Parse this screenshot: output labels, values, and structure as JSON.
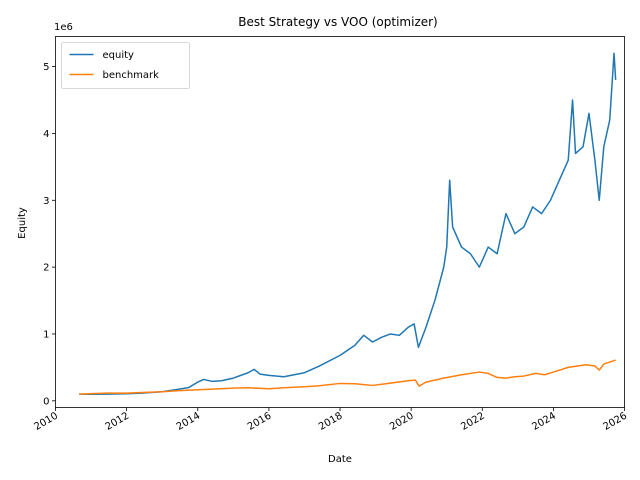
{
  "chart_data": {
    "type": "line",
    "title": "Best Strategy vs VOO (optimizer)",
    "xlabel": "Date",
    "ylabel": "Equity",
    "y_offset_label": "1e6",
    "x_range": [
      "2010-01-01",
      "2025-12-31"
    ],
    "ylim": [
      -100000,
      5450000
    ],
    "x_ticks": [
      "2010",
      "2012",
      "2014",
      "2016",
      "2018",
      "2020",
      "2022",
      "2024",
      "2026"
    ],
    "y_ticks": [
      0,
      1,
      2,
      3,
      4,
      5
    ],
    "grid": false,
    "legend_position": "upper left",
    "series": [
      {
        "name": "equity",
        "color": "#1f77b4",
        "points": [
          [
            "2010-09-01",
            100000
          ],
          [
            "2011-01-01",
            98000
          ],
          [
            "2011-06-01",
            100000
          ],
          [
            "2012-01-01",
            105000
          ],
          [
            "2012-06-01",
            115000
          ],
          [
            "2013-01-01",
            135000
          ],
          [
            "2013-06-01",
            170000
          ],
          [
            "2013-10-01",
            200000
          ],
          [
            "2014-01-01",
            280000
          ],
          [
            "2014-03-01",
            320000
          ],
          [
            "2014-06-01",
            290000
          ],
          [
            "2014-09-01",
            300000
          ],
          [
            "2015-01-01",
            340000
          ],
          [
            "2015-06-01",
            420000
          ],
          [
            "2015-08-01",
            470000
          ],
          [
            "2015-10-01",
            400000
          ],
          [
            "2016-01-01",
            380000
          ],
          [
            "2016-06-01",
            360000
          ],
          [
            "2017-01-01",
            420000
          ],
          [
            "2017-06-01",
            520000
          ],
          [
            "2018-01-01",
            680000
          ],
          [
            "2018-06-01",
            830000
          ],
          [
            "2018-09-01",
            980000
          ],
          [
            "2018-12-01",
            880000
          ],
          [
            "2019-03-01",
            950000
          ],
          [
            "2019-06-01",
            1000000
          ],
          [
            "2019-09-01",
            980000
          ],
          [
            "2019-12-01",
            1100000
          ],
          [
            "2020-02-01",
            1150000
          ],
          [
            "2020-03-15",
            800000
          ],
          [
            "2020-06-01",
            1100000
          ],
          [
            "2020-09-01",
            1500000
          ],
          [
            "2020-12-01",
            2000000
          ],
          [
            "2021-01-01",
            2300000
          ],
          [
            "2021-02-01",
            3300000
          ],
          [
            "2021-03-01",
            2600000
          ],
          [
            "2021-06-01",
            2300000
          ],
          [
            "2021-09-01",
            2200000
          ],
          [
            "2021-12-01",
            2000000
          ],
          [
            "2022-03-01",
            2300000
          ],
          [
            "2022-06-01",
            2200000
          ],
          [
            "2022-09-01",
            2800000
          ],
          [
            "2022-12-01",
            2500000
          ],
          [
            "2023-03-01",
            2600000
          ],
          [
            "2023-06-01",
            2900000
          ],
          [
            "2023-09-01",
            2800000
          ],
          [
            "2023-12-01",
            3000000
          ],
          [
            "2024-03-01",
            3300000
          ],
          [
            "2024-06-01",
            3600000
          ],
          [
            "2024-07-15",
            4500000
          ],
          [
            "2024-08-15",
            3700000
          ],
          [
            "2024-11-01",
            3800000
          ],
          [
            "2025-01-01",
            4300000
          ],
          [
            "2025-03-01",
            3600000
          ],
          [
            "2025-04-15",
            3000000
          ],
          [
            "2025-06-01",
            3800000
          ],
          [
            "2025-08-01",
            4200000
          ],
          [
            "2025-09-15",
            5200000
          ],
          [
            "2025-10-01",
            4800000
          ]
        ]
      },
      {
        "name": "benchmark",
        "color": "#ff7f0e",
        "points": [
          [
            "2010-09-01",
            100000
          ],
          [
            "2011-06-01",
            115000
          ],
          [
            "2012-01-01",
            115000
          ],
          [
            "2012-06-01",
            125000
          ],
          [
            "2013-01-01",
            135000
          ],
          [
            "2013-06-01",
            150000
          ],
          [
            "2014-01-01",
            165000
          ],
          [
            "2014-06-01",
            175000
          ],
          [
            "2015-01-01",
            190000
          ],
          [
            "2015-06-01",
            195000
          ],
          [
            "2016-01-01",
            180000
          ],
          [
            "2016-06-01",
            195000
          ],
          [
            "2017-01-01",
            210000
          ],
          [
            "2017-06-01",
            225000
          ],
          [
            "2018-01-01",
            260000
          ],
          [
            "2018-06-01",
            255000
          ],
          [
            "2018-12-01",
            230000
          ],
          [
            "2019-06-01",
            265000
          ],
          [
            "2019-12-01",
            300000
          ],
          [
            "2020-02-15",
            310000
          ],
          [
            "2020-03-20",
            220000
          ],
          [
            "2020-06-01",
            280000
          ],
          [
            "2020-12-01",
            340000
          ],
          [
            "2021-06-01",
            390000
          ],
          [
            "2021-12-01",
            430000
          ],
          [
            "2022-03-01",
            410000
          ],
          [
            "2022-06-01",
            350000
          ],
          [
            "2022-09-01",
            340000
          ],
          [
            "2022-12-01",
            360000
          ],
          [
            "2023-03-01",
            370000
          ],
          [
            "2023-07-01",
            410000
          ],
          [
            "2023-10-01",
            390000
          ],
          [
            "2024-01-01",
            430000
          ],
          [
            "2024-06-01",
            500000
          ],
          [
            "2024-12-01",
            540000
          ],
          [
            "2025-03-01",
            520000
          ],
          [
            "2025-04-15",
            460000
          ],
          [
            "2025-06-01",
            550000
          ],
          [
            "2025-10-01",
            610000
          ]
        ]
      }
    ]
  }
}
